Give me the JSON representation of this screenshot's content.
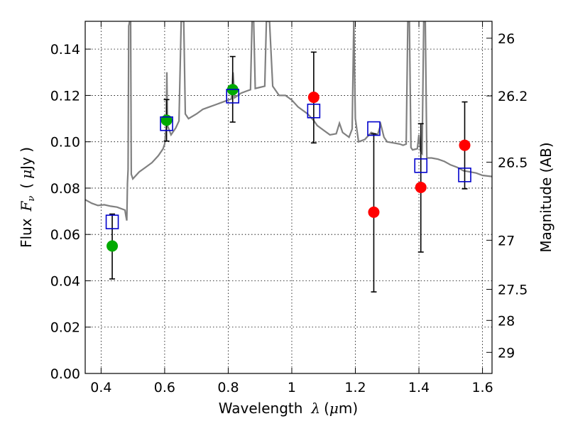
{
  "chart_data": {
    "type": "scatter",
    "xlabel": {
      "text": "Wavelength",
      "symbol": "λ",
      "unit_open": "(",
      "unit_mu": "μ",
      "unit_rest": "m)"
    },
    "ylabel": {
      "text": "Flux",
      "symbol": "F",
      "subscript": "ν",
      "unit_open": "(",
      "unit_mu": "μ",
      "unit_rest": "Jy )"
    },
    "y2label": "Magnitude (AB)",
    "xlim": [
      0.35,
      1.63
    ],
    "ylim": [
      0.0,
      0.152
    ],
    "grid": true,
    "x_ticks": [
      {
        "value": 0.4,
        "label": "0.4"
      },
      {
        "value": 0.6,
        "label": "0.6"
      },
      {
        "value": 0.8,
        "label": "0.8"
      },
      {
        "value": 1.0,
        "label": "1"
      },
      {
        "value": 1.2,
        "label": "1.2"
      },
      {
        "value": 1.4,
        "label": "1.4"
      },
      {
        "value": 1.6,
        "label": "1.6"
      }
    ],
    "y_ticks": [
      {
        "value": 0.0,
        "label": "0.00"
      },
      {
        "value": 0.02,
        "label": "0.02"
      },
      {
        "value": 0.04,
        "label": "0.04"
      },
      {
        "value": 0.06,
        "label": "0.06"
      },
      {
        "value": 0.08,
        "label": "0.08"
      },
      {
        "value": 0.1,
        "label": "0.10"
      },
      {
        "value": 0.12,
        "label": "0.12"
      },
      {
        "value": 0.14,
        "label": "0.14"
      }
    ],
    "y2_ticks": [
      {
        "flux": 0.1447,
        "label": "26"
      },
      {
        "flux": 0.1198,
        "label": "26.2"
      },
      {
        "flux": 0.0912,
        "label": "26.5"
      },
      {
        "flux": 0.0575,
        "label": "27"
      },
      {
        "flux": 0.0363,
        "label": "27.5"
      },
      {
        "flux": 0.0229,
        "label": "28"
      },
      {
        "flux": 0.0091,
        "label": "29"
      }
    ],
    "colors": {
      "template": "#808080",
      "model": "#0000cc",
      "green": "#00aa00",
      "red": "#ff0000",
      "errorbar": "#000000"
    },
    "template_spectrum": [
      [
        0.35,
        0.075
      ],
      [
        0.37,
        0.0735
      ],
      [
        0.39,
        0.0725
      ],
      [
        0.41,
        0.0728
      ],
      [
        0.43,
        0.0722
      ],
      [
        0.45,
        0.0718
      ],
      [
        0.47,
        0.0708
      ],
      [
        0.475,
        0.0705
      ],
      [
        0.478,
        0.068
      ],
      [
        0.481,
        0.066
      ],
      [
        0.483,
        0.082
      ],
      [
        0.485,
        0.088
      ],
      [
        0.487,
        0.15
      ],
      [
        0.49,
        0.152
      ],
      [
        0.493,
        0.152
      ],
      [
        0.495,
        0.086
      ],
      [
        0.5,
        0.084
      ],
      [
        0.52,
        0.087
      ],
      [
        0.54,
        0.089
      ],
      [
        0.56,
        0.091
      ],
      [
        0.58,
        0.094
      ],
      [
        0.595,
        0.097
      ],
      [
        0.6,
        0.099
      ],
      [
        0.605,
        0.107
      ],
      [
        0.607,
        0.13
      ],
      [
        0.609,
        0.107
      ],
      [
        0.62,
        0.103
      ],
      [
        0.635,
        0.106
      ],
      [
        0.645,
        0.109
      ],
      [
        0.652,
        0.152
      ],
      [
        0.656,
        0.152
      ],
      [
        0.66,
        0.152
      ],
      [
        0.665,
        0.112
      ],
      [
        0.675,
        0.11
      ],
      [
        0.7,
        0.112
      ],
      [
        0.72,
        0.114
      ],
      [
        0.74,
        0.115
      ],
      [
        0.76,
        0.116
      ],
      [
        0.78,
        0.117
      ],
      [
        0.8,
        0.118
      ],
      [
        0.81,
        0.1185
      ],
      [
        0.815,
        0.13
      ],
      [
        0.82,
        0.119
      ],
      [
        0.83,
        0.12
      ],
      [
        0.84,
        0.121
      ],
      [
        0.86,
        0.122
      ],
      [
        0.87,
        0.1225
      ],
      [
        0.875,
        0.152
      ],
      [
        0.88,
        0.152
      ],
      [
        0.885,
        0.123
      ],
      [
        0.9,
        0.1235
      ],
      [
        0.915,
        0.124
      ],
      [
        0.92,
        0.152
      ],
      [
        0.93,
        0.152
      ],
      [
        0.94,
        0.124
      ],
      [
        0.96,
        0.12
      ],
      [
        0.98,
        0.12
      ],
      [
        1.0,
        0.118
      ],
      [
        1.02,
        0.115
      ],
      [
        1.05,
        0.112
      ],
      [
        1.07,
        0.109
      ],
      [
        1.08,
        0.107
      ],
      [
        1.1,
        0.105
      ],
      [
        1.12,
        0.103
      ],
      [
        1.14,
        0.1035
      ],
      [
        1.15,
        0.108
      ],
      [
        1.16,
        0.104
      ],
      [
        1.18,
        0.102
      ],
      [
        1.19,
        0.1055
      ],
      [
        1.195,
        0.152
      ],
      [
        1.2,
        0.11
      ],
      [
        1.21,
        0.1
      ],
      [
        1.23,
        0.101
      ],
      [
        1.25,
        0.104
      ],
      [
        1.27,
        0.103
      ],
      [
        1.28,
        0.1075
      ],
      [
        1.29,
        0.102
      ],
      [
        1.3,
        0.1
      ],
      [
        1.32,
        0.0995
      ],
      [
        1.34,
        0.099
      ],
      [
        1.35,
        0.0985
      ],
      [
        1.36,
        0.099
      ],
      [
        1.365,
        0.152
      ],
      [
        1.37,
        0.152
      ],
      [
        1.375,
        0.0975
      ],
      [
        1.38,
        0.0965
      ],
      [
        1.395,
        0.097
      ],
      [
        1.4,
        0.103
      ],
      [
        1.405,
        0.096
      ],
      [
        1.41,
        0.095
      ],
      [
        1.415,
        0.152
      ],
      [
        1.42,
        0.152
      ],
      [
        1.425,
        0.093
      ],
      [
        1.44,
        0.093
      ],
      [
        1.46,
        0.0925
      ],
      [
        1.48,
        0.0915
      ],
      [
        1.5,
        0.09
      ],
      [
        1.52,
        0.089
      ],
      [
        1.54,
        0.0875
      ],
      [
        1.56,
        0.087
      ],
      [
        1.58,
        0.0865
      ],
      [
        1.6,
        0.0855
      ],
      [
        1.63,
        0.085
      ]
    ],
    "model_squares": [
      {
        "x": 0.435,
        "y": 0.0654
      },
      {
        "x": 0.606,
        "y": 0.1078
      },
      {
        "x": 0.814,
        "y": 0.1197
      },
      {
        "x": 1.069,
        "y": 0.1133
      },
      {
        "x": 1.258,
        "y": 0.1057
      },
      {
        "x": 1.406,
        "y": 0.0897
      },
      {
        "x": 1.544,
        "y": 0.0857
      }
    ],
    "observed_points": [
      {
        "x": 0.435,
        "y": 0.055,
        "color": "green",
        "err_low": 0.0408,
        "err_high": 0.0688
      },
      {
        "x": 0.606,
        "y": 0.1093,
        "color": "green",
        "err_low": 0.1003,
        "err_high": 0.1182
      },
      {
        "x": 0.814,
        "y": 0.1225,
        "color": "green",
        "err_low": 0.1085,
        "err_high": 0.1368
      },
      {
        "x": 1.069,
        "y": 0.1192,
        "color": "red",
        "err_low": 0.0995,
        "err_high": 0.1387
      },
      {
        "x": 1.258,
        "y": 0.0696,
        "color": "red",
        "err_low": 0.0352,
        "err_high": 0.1034
      },
      {
        "x": 1.406,
        "y": 0.0803,
        "color": "red",
        "err_low": 0.0524,
        "err_high": 0.1078
      },
      {
        "x": 1.544,
        "y": 0.0985,
        "color": "red",
        "err_low": 0.0797,
        "err_high": 0.1172
      }
    ]
  }
}
